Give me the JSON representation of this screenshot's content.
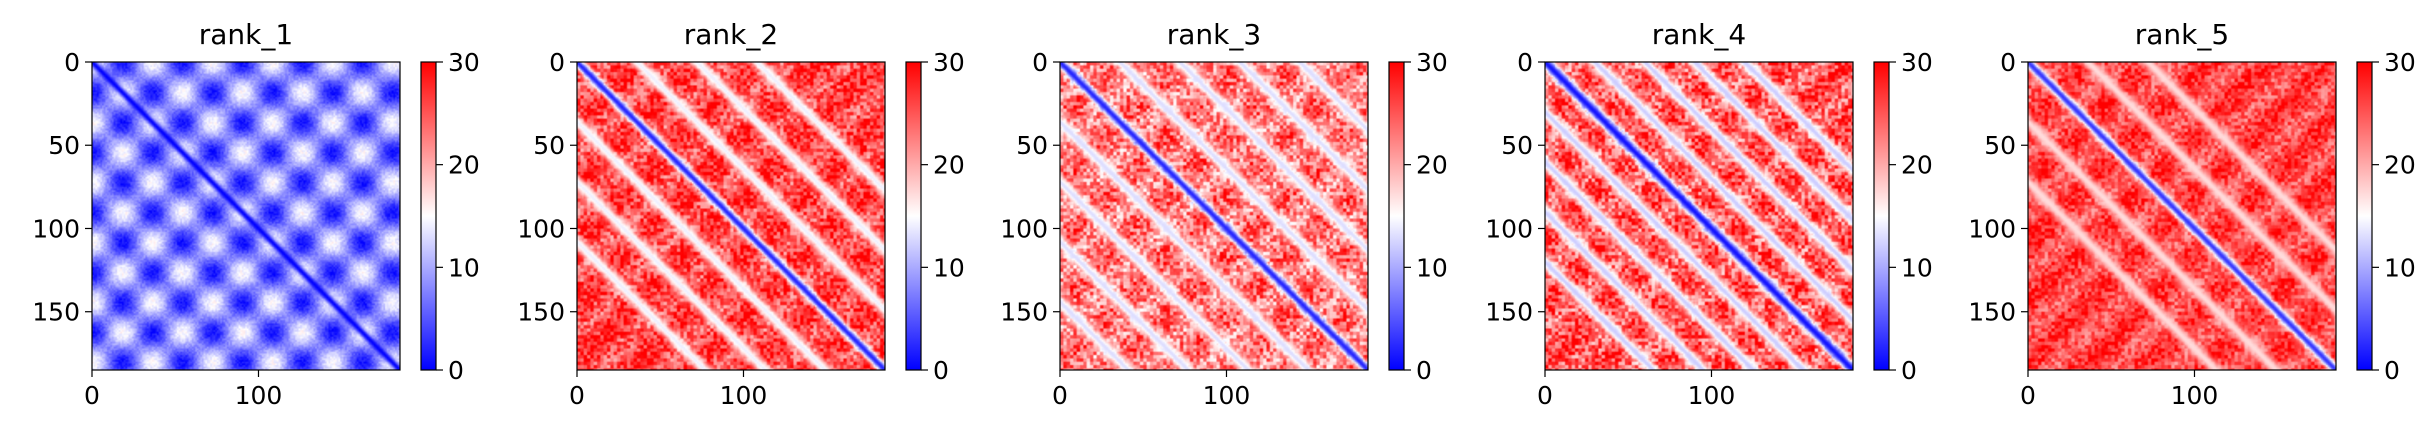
{
  "chart_data": [
    {
      "type": "heatmap",
      "title": "rank_1",
      "xlim": [
        0,
        185
      ],
      "ylim": [
        185,
        0
      ],
      "x_ticks": [
        0,
        100
      ],
      "y_ticks": [
        0,
        50,
        100,
        150
      ],
      "colorbar": {
        "ticks": [
          0,
          10,
          20,
          30
        ],
        "range": [
          0,
          30
        ],
        "colormap": "bwr"
      },
      "pattern": {
        "base": 8,
        "diag": 0,
        "diag_width": 3,
        "band_offsets": [],
        "band_value": 0,
        "band_width": 4,
        "texture": "periodic",
        "tex_amp": 7,
        "tex_period": 36
      }
    },
    {
      "type": "heatmap",
      "title": "rank_2",
      "xlim": [
        0,
        185
      ],
      "ylim": [
        185,
        0
      ],
      "x_ticks": [
        0,
        100
      ],
      "y_ticks": [
        0,
        50,
        100,
        150
      ],
      "colorbar": {
        "ticks": [
          0,
          10,
          20,
          30
        ],
        "range": [
          0,
          30
        ],
        "colormap": "bwr"
      },
      "pattern": {
        "base": 26,
        "diag": 2,
        "diag_width": 4,
        "band_offsets": [
          36,
          72,
          108
        ],
        "band_value": 14,
        "band_width": 5,
        "texture": "noise",
        "tex_amp": 5,
        "tex_period": 36
      }
    },
    {
      "type": "heatmap",
      "title": "rank_3",
      "xlim": [
        0,
        185
      ],
      "ylim": [
        185,
        0
      ],
      "x_ticks": [
        0,
        100
      ],
      "y_ticks": [
        0,
        50,
        100,
        150
      ],
      "colorbar": {
        "ticks": [
          0,
          10,
          20,
          30
        ],
        "range": [
          0,
          30
        ],
        "colormap": "bwr"
      },
      "pattern": {
        "base": 23,
        "diag": 2,
        "diag_width": 4,
        "band_offsets": [
          36,
          72,
          108,
          144
        ],
        "band_value": 13,
        "band_width": 5,
        "texture": "noise",
        "tex_amp": 6,
        "tex_period": 36
      }
    },
    {
      "type": "heatmap",
      "title": "rank_4",
      "xlim": [
        0,
        185
      ],
      "ylim": [
        185,
        0
      ],
      "x_ticks": [
        0,
        100
      ],
      "y_ticks": [
        0,
        50,
        100,
        150
      ],
      "colorbar": {
        "ticks": [
          0,
          10,
          20,
          30
        ],
        "range": [
          0,
          30
        ],
        "colormap": "bwr"
      },
      "pattern": {
        "base": 25,
        "diag": 1,
        "diag_width": 5,
        "band_offsets": [
          30,
          60,
          90,
          120
        ],
        "band_value": 12,
        "band_width": 5,
        "texture": "noise",
        "tex_amp": 6,
        "tex_period": 36
      }
    },
    {
      "type": "heatmap",
      "title": "rank_5",
      "xlim": [
        0,
        185
      ],
      "ylim": [
        185,
        0
      ],
      "x_ticks": [
        0,
        100
      ],
      "y_ticks": [
        0,
        50,
        100,
        150
      ],
      "colorbar": {
        "ticks": [
          0,
          10,
          20,
          30
        ],
        "range": [
          0,
          30
        ],
        "colormap": "bwr"
      },
      "pattern": {
        "base": 26,
        "diag": 3,
        "diag_width": 4,
        "band_offsets": [
          36,
          72
        ],
        "band_value": 17,
        "band_width": 5,
        "texture": "noise",
        "tex_amp": 4,
        "tex_period": 36
      }
    }
  ]
}
